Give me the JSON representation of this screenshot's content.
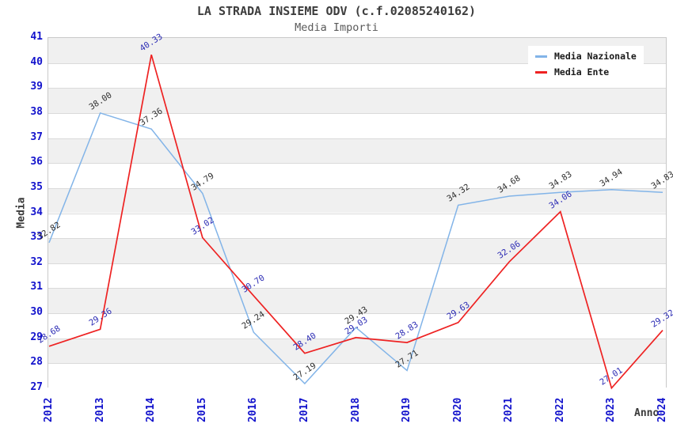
{
  "chart_data": {
    "type": "line",
    "title": "LA STRADA INSIEME ODV (c.f.02085240162)",
    "subtitle": "Media Importi",
    "xlabel": "Anno",
    "ylabel": "Media",
    "x_categories": [
      "2012",
      "2013",
      "2014",
      "2015",
      "2016",
      "2017",
      "2018",
      "2019",
      "2020",
      "2021",
      "2022",
      "2023",
      "2024"
    ],
    "series": [
      {
        "name": "Media Nazionale",
        "color": "#82b4e8",
        "label_color": "#2e2e2e",
        "values": [
          32.82,
          38.0,
          37.36,
          34.79,
          29.24,
          27.19,
          29.43,
          27.71,
          34.32,
          34.68,
          34.83,
          34.94,
          34.83
        ]
      },
      {
        "name": "Media Ente",
        "color": "#ee2222",
        "label_color": "#2b2bb4",
        "values": [
          28.68,
          29.36,
          40.33,
          33.02,
          30.7,
          28.4,
          29.03,
          28.83,
          29.63,
          32.06,
          34.06,
          27.01,
          29.32
        ]
      }
    ],
    "ylim": [
      27,
      41
    ],
    "y_ticks": [
      27,
      28,
      29,
      30,
      31,
      32,
      33,
      34,
      35,
      36,
      37,
      38,
      39,
      40,
      41
    ],
    "legend_position": "top-right",
    "grid": "horizontal gridlines with alternating shaded bands",
    "point_label_format": "two decimals, rotated"
  },
  "colors": {
    "tick_label": "#1212cc",
    "title": "#3d3d3d",
    "subtitle": "#5a5a5a",
    "axis_label": "#3a3a3a",
    "band_alt": "#f0f0f0",
    "band_main": "#ffffff",
    "gridline": "#dadada",
    "plot_border": "#c9c9c9",
    "legend_bg": "#ffffff",
    "legend_text": "#1a1a1a"
  }
}
